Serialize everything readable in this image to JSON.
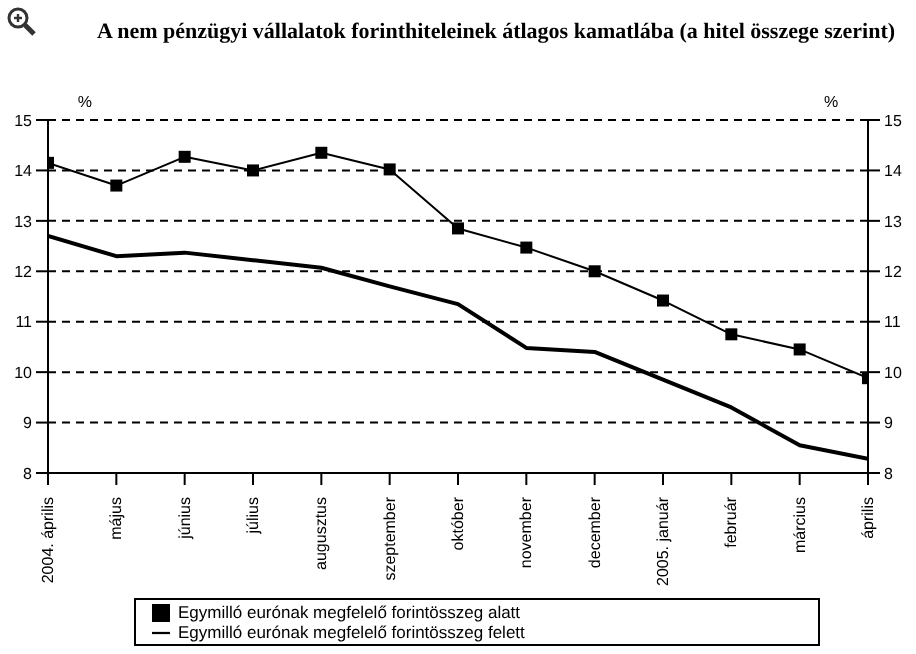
{
  "chart_data": {
    "type": "line",
    "title": "A nem pénzügyi vállalatok forinthiteleinek átlagos kamatlába (a hitel összege szerint)",
    "ylabel": "%",
    "y2label": "%",
    "categories": [
      "2004. április",
      "május",
      "június",
      "július",
      "augusztus",
      "szeptember",
      "október",
      "november",
      "december",
      "2005. január",
      "február",
      "március",
      "április"
    ],
    "series": [
      {
        "name": "Egymilló eurónak megfelelő forintösszeg alatt",
        "color": "#000000",
        "marker": "square",
        "values": [
          14.15,
          13.7,
          14.27,
          14.0,
          14.35,
          14.02,
          12.85,
          12.47,
          12.0,
          11.42,
          10.75,
          10.45,
          9.88
        ]
      },
      {
        "name": "Egymilló eurónak megfelelő forintösszeg felett",
        "color": "#000000",
        "marker": "none",
        "values": [
          12.7,
          12.3,
          12.37,
          12.22,
          12.07,
          11.7,
          11.35,
          10.48,
          10.4,
          9.85,
          9.3,
          8.55,
          8.28
        ]
      }
    ],
    "ylim": [
      8,
      15
    ],
    "yticks": [
      8,
      9,
      10,
      11,
      12,
      13,
      14,
      15
    ],
    "y2lim": [
      8,
      15
    ],
    "y2ticks": [
      8,
      9,
      10,
      11,
      12,
      13,
      14,
      15
    ],
    "grid": "y",
    "legend": "bottom",
    "line_style": "solid"
  }
}
